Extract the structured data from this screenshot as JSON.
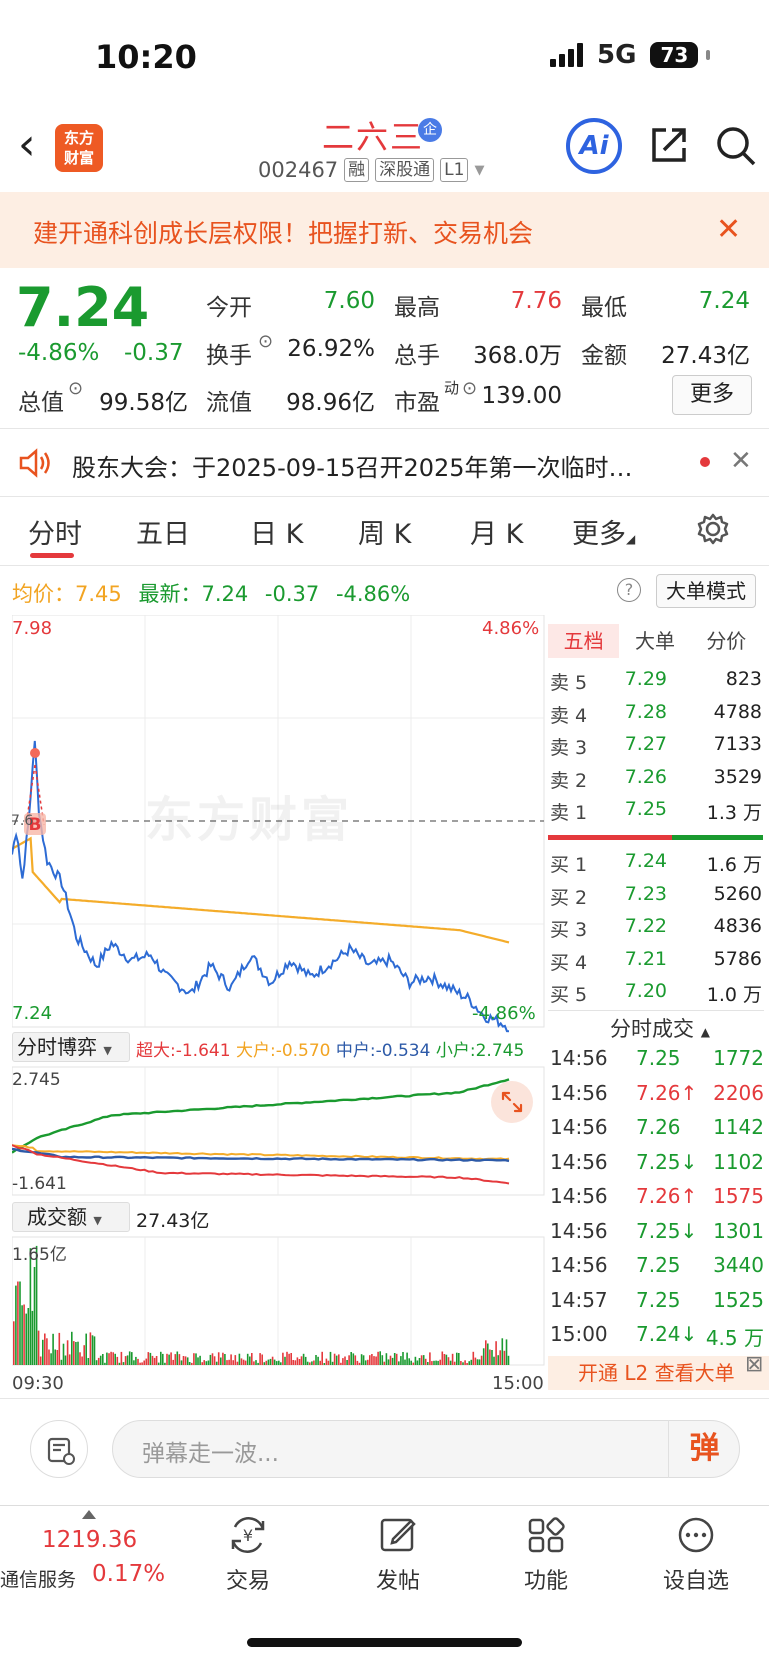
{
  "status": {
    "time": "10:20",
    "network": "5G",
    "battery": "73"
  },
  "header": {
    "logo_line1": "东方",
    "logo_line2": "财富",
    "stock_name": "二六三",
    "badge": "企",
    "stock_code": "002467",
    "tags": [
      "融",
      "深股通",
      "L1"
    ],
    "ai_label": "Ai"
  },
  "banner": {
    "text": "建开通科创成长层权限！把握打新、交易机会",
    "close": "✕"
  },
  "quote": {
    "price": "7.24",
    "change_pct": "-4.86%",
    "change_abs": "-0.37",
    "open_label": "今开",
    "open": "7.60",
    "high_label": "最高",
    "high": "7.76",
    "low_label": "最低",
    "low": "7.24",
    "turnover_label": "换手",
    "turnover": "26.92%",
    "volume_label": "总手",
    "volume": "368.0万",
    "amount_label": "金额",
    "amount": "27.43亿",
    "mktcap_label": "总值",
    "mktcap": "99.58亿",
    "float_label": "流值",
    "float": "98.96亿",
    "pe_label": "市盈",
    "pe_sup": "动",
    "pe": "139.00",
    "more": "更多"
  },
  "notice": {
    "text": "股东大会：于2025-09-15召开2025年第一次临时…",
    "close": "✕"
  },
  "tabs": [
    "分时",
    "五日",
    "日 K",
    "周 K",
    "月 K",
    "更多"
  ],
  "info": {
    "avg_label": "均价：",
    "avg": "7.45",
    "last_label": "最新：",
    "last": "7.24",
    "chg": "-0.37",
    "pct": "-4.86%",
    "help": "?",
    "mode_btn": "大单模式"
  },
  "chart_labels": {
    "top_price": "7.98",
    "top_pct": "4.86%",
    "bottom_price": "7.24",
    "bottom_pct": "-4.86%",
    "prev_close_tick": "7.6",
    "buy_marker": "B",
    "watermark": "东方财富"
  },
  "game": {
    "selector": "分时博弈",
    "super_label": "超大:",
    "super": "-1.641",
    "large_label": "大户:",
    "large": "-0.570",
    "mid_label": "中户:",
    "mid": "-0.534",
    "small_label": "小户:",
    "small": "2.745",
    "axis_top": "2.745",
    "axis_bottom": "-1.641"
  },
  "volume_panel": {
    "selector": "成交额",
    "total": "27.43亿",
    "axis_top": "1.65亿",
    "time_start": "09:30",
    "time_end": "15:00"
  },
  "depth": {
    "tabs": [
      "五档",
      "大单",
      "分价"
    ],
    "asks": [
      {
        "label": "卖 5",
        "price": "7.29",
        "vol": "823"
      },
      {
        "label": "卖 4",
        "price": "7.28",
        "vol": "4788"
      },
      {
        "label": "卖 3",
        "price": "7.27",
        "vol": "7133"
      },
      {
        "label": "卖 2",
        "price": "7.26",
        "vol": "3529"
      },
      {
        "label": "卖 1",
        "price": "7.25",
        "vol": "1.3 万"
      }
    ],
    "bids": [
      {
        "label": "买 1",
        "price": "7.24",
        "vol": "1.6 万"
      },
      {
        "label": "买 2",
        "price": "7.23",
        "vol": "5260"
      },
      {
        "label": "买 3",
        "price": "7.22",
        "vol": "4836"
      },
      {
        "label": "买 4",
        "price": "7.21",
        "vol": "5786"
      },
      {
        "label": "买 5",
        "price": "7.20",
        "vol": "1.0 万"
      }
    ]
  },
  "ticks": {
    "header": "分时成交",
    "rows": [
      {
        "time": "14:56",
        "price": "7.25",
        "vol": "1772"
      },
      {
        "time": "14:56",
        "price": "7.26↑",
        "vol": "2206"
      },
      {
        "time": "14:56",
        "price": "7.26",
        "vol": "1142"
      },
      {
        "time": "14:56",
        "price": "7.25↓",
        "vol": "1102"
      },
      {
        "time": "14:56",
        "price": "7.26↑",
        "vol": "1575"
      },
      {
        "time": "14:56",
        "price": "7.25↓",
        "vol": "1301"
      },
      {
        "time": "14:56",
        "price": "7.25",
        "vol": "3440"
      },
      {
        "time": "14:57",
        "price": "7.25",
        "vol": "1525"
      },
      {
        "time": "15:00",
        "price": "7.24↓",
        "vol": "4.5 万"
      }
    ],
    "l2_btn": "开通 L2 查看大单"
  },
  "input": {
    "placeholder": "弹幕走一波...",
    "send": "弹"
  },
  "bottom_nav": {
    "index_value": "1219.36",
    "index_name": "通信服务",
    "index_pct": "0.17%",
    "items": [
      "交易",
      "发帖",
      "功能",
      "设自选"
    ]
  },
  "colors": {
    "up": "#e4393c",
    "down": "#1a9a2f",
    "avg": "#f2a422",
    "price_line": "#2d6bd4"
  }
}
